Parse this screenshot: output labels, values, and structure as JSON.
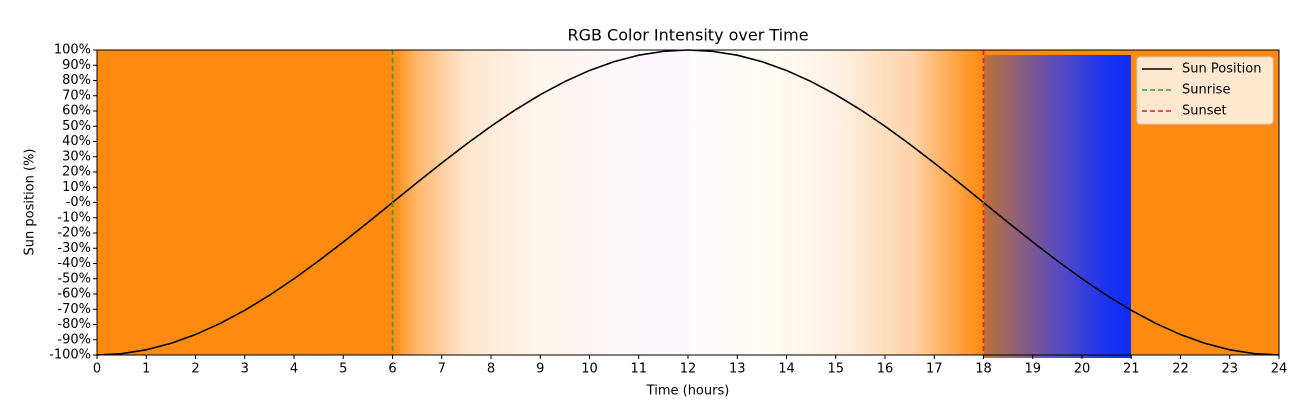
{
  "chart_data": {
    "type": "line",
    "title": "RGB Color Intensity over Time",
    "x_label": "Time (hours)",
    "y_label": "Sun position (%)",
    "xlim": [
      0,
      24
    ],
    "ylim": [
      -100,
      100
    ],
    "xticks": [
      0,
      1,
      2,
      3,
      4,
      5,
      6,
      7,
      8,
      9,
      10,
      11,
      12,
      13,
      14,
      15,
      16,
      17,
      18,
      19,
      20,
      21,
      22,
      23,
      24
    ],
    "yticks": [
      {
        "value": -100,
        "label": "-100%"
      },
      {
        "value": -90,
        "label": "-90%"
      },
      {
        "value": -80,
        "label": "-80%"
      },
      {
        "value": -70,
        "label": "-70%"
      },
      {
        "value": -60,
        "label": "-60%"
      },
      {
        "value": -50,
        "label": "-50%"
      },
      {
        "value": -40,
        "label": "-40%"
      },
      {
        "value": -30,
        "label": "-30%"
      },
      {
        "value": -20,
        "label": "-20%"
      },
      {
        "value": -10,
        "label": "-10%"
      },
      {
        "value": 0,
        "label": "-0%"
      },
      {
        "value": 10,
        "label": "10%"
      },
      {
        "value": 20,
        "label": "20%"
      },
      {
        "value": 30,
        "label": "30%"
      },
      {
        "value": 40,
        "label": "40%"
      },
      {
        "value": 50,
        "label": "50%"
      },
      {
        "value": 60,
        "label": "60%"
      },
      {
        "value": 70,
        "label": "70%"
      },
      {
        "value": 80,
        "label": "80%"
      },
      {
        "value": 90,
        "label": "90%"
      },
      {
        "value": 100,
        "label": "100%"
      }
    ],
    "legend": "upper right",
    "series": [
      {
        "name": "Sun Position",
        "color": "#000000",
        "x": [
          0,
          0.5,
          1,
          1.5,
          2,
          2.5,
          3,
          3.5,
          4,
          4.5,
          5,
          5.5,
          6,
          6.5,
          7,
          7.5,
          8,
          8.5,
          9,
          9.5,
          10,
          10.5,
          11,
          11.5,
          12,
          12.5,
          13,
          13.5,
          14,
          14.5,
          15,
          15.5,
          16,
          16.5,
          17,
          17.5,
          18,
          18.5,
          19,
          19.5,
          20,
          20.5,
          21,
          21.5,
          22,
          22.5,
          23,
          23.5,
          24
        ],
        "values": [
          -100,
          -99.1,
          -96.6,
          -92.4,
          -86.6,
          -79.3,
          -70.7,
          -60.9,
          -50,
          -38.3,
          -25.9,
          -13.1,
          0,
          13.1,
          25.9,
          38.3,
          50,
          60.9,
          70.7,
          79.3,
          86.6,
          92.4,
          96.6,
          99.1,
          100,
          99.1,
          96.6,
          92.4,
          86.6,
          79.3,
          70.7,
          60.9,
          50,
          38.3,
          25.9,
          13.1,
          0,
          -13.1,
          -25.9,
          -38.3,
          -50,
          -60.9,
          -70.7,
          -79.3,
          -86.6,
          -92.4,
          -96.6,
          -99.1,
          -100
        ]
      },
      {
        "name": "Sunrise",
        "color": "#2ca02c",
        "x": 6
      },
      {
        "name": "Sunset",
        "color": "#d62728",
        "x": 18
      }
    ]
  }
}
